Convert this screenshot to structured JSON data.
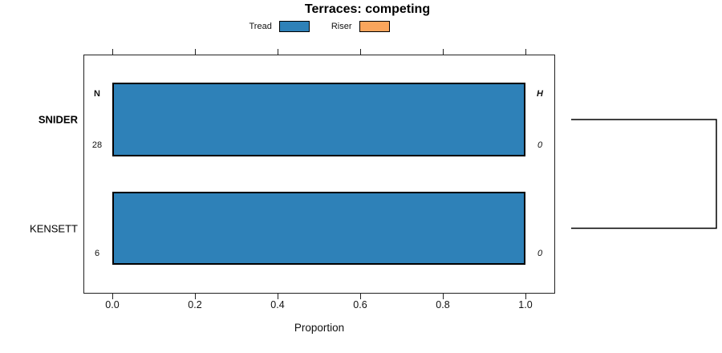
{
  "figure": {
    "background": "#ffffff"
  },
  "legend": [
    {
      "label": "Tread",
      "color": "#2e81b8"
    },
    {
      "label": "Riser",
      "color": "#f9a55c"
    }
  ],
  "chart_data": {
    "type": "bar",
    "orientation": "horizontal",
    "title": "Terraces: competing",
    "xlabel": "Proportion",
    "xlim": [
      0,
      1
    ],
    "x_ticks": [
      0.0,
      0.2,
      0.4,
      0.6,
      0.8,
      1.0
    ],
    "grid": false,
    "categories": [
      "SNIDER",
      "KENSETT"
    ],
    "highlighted_category": "SNIDER",
    "series": [
      {
        "name": "Tread",
        "color": "#2e81b8",
        "values": [
          1.0,
          1.0
        ]
      },
      {
        "name": "Riser",
        "color": "#f9a55c",
        "values": [
          0.0,
          0.0
        ]
      }
    ],
    "annotations": {
      "count_header": "N",
      "count_values": [
        28,
        6
      ],
      "h_header": "H",
      "h_values": [
        0,
        0
      ]
    },
    "bracket": {
      "side": "right",
      "connects": [
        "SNIDER",
        "KENSETT"
      ]
    }
  }
}
